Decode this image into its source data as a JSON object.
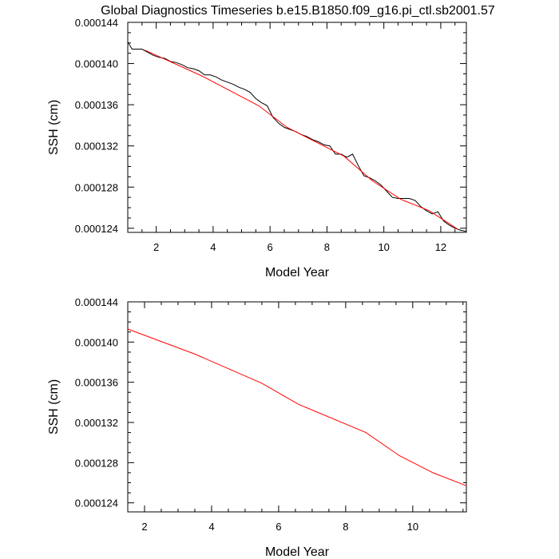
{
  "chart_data": [
    {
      "type": "line",
      "title": "Global Diagnostics Timeseries b.e15.B1850.f09_g16.pi_ctl.sb2001.57",
      "xlabel": "Model Year",
      "ylabel": "SSH (cm)",
      "xlim": [
        1.0,
        12.9
      ],
      "ylim": [
        0.0001236,
        0.000144
      ],
      "x_ticks": [
        2,
        4,
        6,
        8,
        10,
        12
      ],
      "x_tick_labels": [
        "2",
        "4",
        "6",
        "8",
        "10",
        "12"
      ],
      "y_ticks": [
        0.000124,
        0.000128,
        0.000132,
        0.000136,
        0.00014,
        0.000144
      ],
      "y_tick_labels": [
        "0.000124",
        "0.000128",
        "0.000132",
        "0.000136",
        "0.000140",
        "0.000144"
      ],
      "grid": false,
      "series": [
        {
          "color": "#000000",
          "x": [
            1.0,
            1.15,
            1.3,
            1.5,
            1.7,
            1.9,
            2.1,
            2.3,
            2.5,
            2.7,
            2.9,
            3.1,
            3.3,
            3.5,
            3.7,
            3.9,
            4.1,
            4.3,
            4.5,
            4.7,
            4.9,
            5.1,
            5.3,
            5.5,
            5.7,
            5.9,
            6.1,
            6.3,
            6.5,
            6.7,
            6.9,
            7.1,
            7.3,
            7.5,
            7.7,
            7.9,
            8.1,
            8.3,
            8.5,
            8.7,
            8.9,
            9.1,
            9.3,
            9.5,
            9.7,
            9.9,
            10.1,
            10.3,
            10.5,
            10.7,
            10.9,
            11.1,
            11.3,
            11.5,
            11.7,
            11.9,
            12.1,
            12.3,
            12.5,
            12.7,
            12.9
          ],
          "values": [
            0.0001421,
            0.0001414,
            0.0001414,
            0.0001414,
            0.0001411,
            0.0001408,
            0.0001406,
            0.0001405,
            0.0001402,
            0.0001401,
            0.0001399,
            0.0001396,
            0.0001395,
            0.0001393,
            0.0001389,
            0.0001389,
            0.0001387,
            0.0001384,
            0.0001382,
            0.000138,
            0.0001377,
            0.0001375,
            0.0001372,
            0.0001366,
            0.0001362,
            0.0001359,
            0.0001348,
            0.0001342,
            0.0001338,
            0.0001336,
            0.0001334,
            0.0001331,
            0.0001329,
            0.0001326,
            0.0001324,
            0.0001321,
            0.000132,
            0.0001312,
            0.0001312,
            0.0001309,
            0.0001312,
            0.0001301,
            0.0001291,
            0.0001289,
            0.0001286,
            0.0001282,
            0.0001276,
            0.000127,
            0.0001269,
            0.0001269,
            0.0001269,
            0.0001267,
            0.0001261,
            0.0001257,
            0.0001254,
            0.0001256,
            0.0001247,
            0.0001243,
            0.000124,
            0.0001238,
            0.0001237
          ]
        },
        {
          "color": "#ff0000",
          "x": [
            1.6,
            3.6,
            5.6,
            6.6,
            8.6,
            9.6,
            10.6,
            11.6,
            12.6
          ],
          "values": [
            0.0001413,
            0.0001388,
            0.0001359,
            0.0001338,
            0.000131,
            0.0001286,
            0.0001268,
            0.0001257,
            0.0001239
          ]
        }
      ]
    },
    {
      "type": "line",
      "xlabel": "Model Year",
      "ylabel": "SSH (cm)",
      "xlim": [
        1.5,
        11.6
      ],
      "ylim": [
        0.0001231,
        0.000144
      ],
      "x_ticks": [
        2,
        4,
        6,
        8,
        10
      ],
      "x_tick_labels": [
        "2",
        "4",
        "6",
        "8",
        "10"
      ],
      "y_ticks": [
        0.000124,
        0.000128,
        0.000132,
        0.000136,
        0.00014,
        0.000144
      ],
      "y_tick_labels": [
        "0.000124",
        "0.000128",
        "0.000132",
        "0.000136",
        "0.000140",
        "0.000144"
      ],
      "grid": false,
      "series": [
        {
          "color": "#ff0000",
          "x": [
            1.5,
            3.5,
            5.5,
            6.6,
            8.6,
            9.6,
            10.6,
            11.6
          ],
          "values": [
            0.0001413,
            0.0001388,
            0.0001359,
            0.0001338,
            0.000131,
            0.0001287,
            0.000127,
            0.0001257
          ]
        }
      ]
    }
  ]
}
